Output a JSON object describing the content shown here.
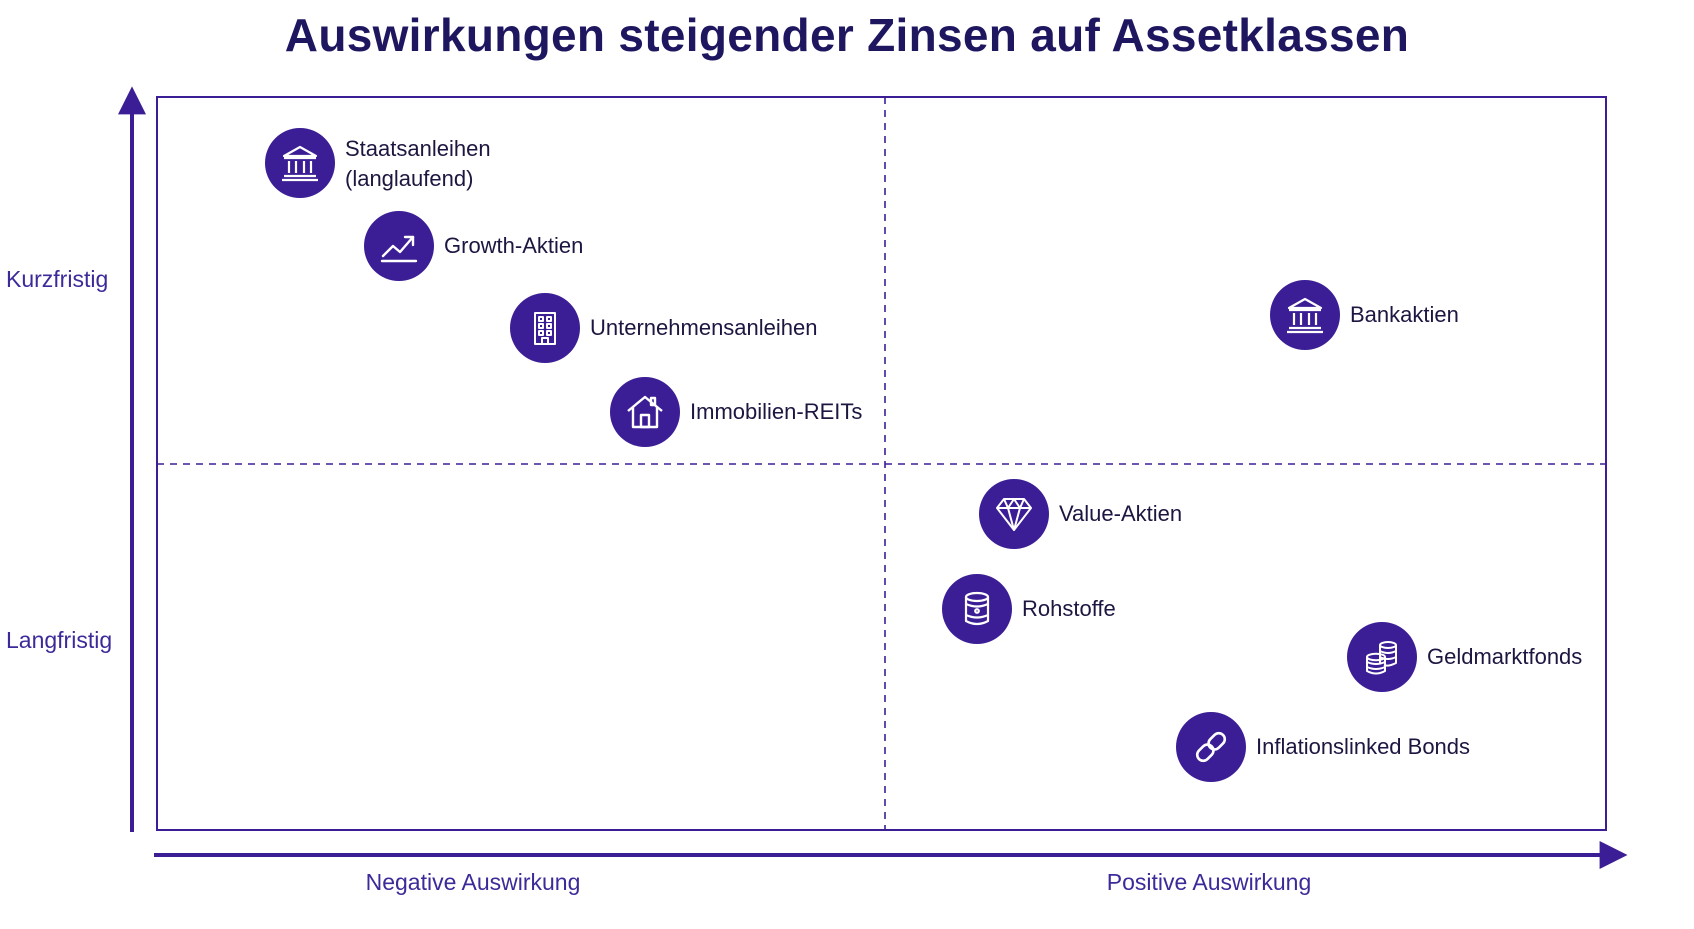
{
  "colors": {
    "primary": "#3b1e95",
    "title": "#1e1760",
    "axis_label": "#3d2a9a",
    "label_text": "#1c1640",
    "icon_fill": "#ffffff"
  },
  "title": "Auswirkungen steigender Zinsen auf Assetklassen",
  "y_axis": {
    "top_label": "Kurzfristig",
    "bottom_label": "Langfristig"
  },
  "x_axis": {
    "left_label": "Negative Auswirkung",
    "right_label": "Positive Auswirkung"
  },
  "assets": [
    {
      "label": "Staatsanleihen",
      "label_line2": "(langlaufend)",
      "icon": "bank-icon",
      "impact": "negativ",
      "horizon": "kurzfristig"
    },
    {
      "label": "Growth-Aktien",
      "icon": "trend-chart-icon",
      "impact": "negativ",
      "horizon": "kurzfristig"
    },
    {
      "label": "Unternehmensanleihen",
      "icon": "office-building-icon",
      "impact": "negativ",
      "horizon": "kurzfristig"
    },
    {
      "label": "Immobilien-REITs",
      "icon": "house-icon",
      "impact": "negativ",
      "horizon": "kurzfristig"
    },
    {
      "label": "Bankaktien",
      "icon": "bank-icon",
      "impact": "positiv",
      "horizon": "kurzfristig"
    },
    {
      "label": "Value-Aktien",
      "icon": "diamond-icon",
      "impact": "positiv",
      "horizon": "langfristig"
    },
    {
      "label": "Rohstoffe",
      "icon": "barrel-icon",
      "impact": "positiv",
      "horizon": "langfristig"
    },
    {
      "label": "Geldmarktfonds",
      "icon": "coin-stack-icon",
      "impact": "positiv",
      "horizon": "langfristig"
    },
    {
      "label": "Inflationslinked Bonds",
      "icon": "chain-link-icon",
      "impact": "positiv",
      "horizon": "langfristig"
    }
  ]
}
